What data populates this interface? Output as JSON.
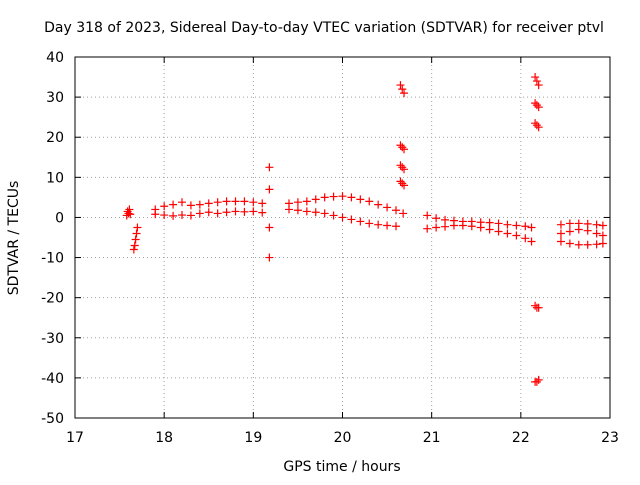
{
  "chart_data": {
    "type": "scatter",
    "title": "Day 318 of 2023, Sidereal Day-to-day VTEC variation (SDTVAR) for receiver ptvl",
    "xlabel": "GPS time / hours",
    "ylabel": "SDTVAR / TECUs",
    "xlim": [
      17,
      23
    ],
    "ylim": [
      -50,
      40
    ],
    "xticks": [
      "17",
      "18",
      "19",
      "20",
      "21",
      "22",
      "23"
    ],
    "yticks": [
      "-50",
      "-40",
      "-30",
      "-20",
      "-10",
      "0",
      "10",
      "20",
      "30",
      "40"
    ],
    "grid": true,
    "marker": "plus",
    "series_color": "#ff0000",
    "series": [
      {
        "name": "arc-17.6",
        "x": [
          17.58,
          17.59,
          17.6,
          17.61,
          17.62
        ],
        "y": [
          0.5,
          1.5,
          1.0,
          2.0,
          0.8
        ]
      },
      {
        "name": "arc-17.68",
        "x": [
          17.66,
          17.67,
          17.68,
          17.69,
          17.7
        ],
        "y": [
          -8.0,
          -7.0,
          -5.5,
          -4.0,
          -2.5
        ]
      },
      {
        "name": "arc-main-1-upper",
        "x": [
          17.9,
          18.0,
          18.1,
          18.2,
          18.3,
          18.4,
          18.5,
          18.6,
          18.7,
          18.8,
          18.9,
          19.0,
          19.1
        ],
        "y": [
          2.0,
          2.8,
          3.2,
          3.8,
          3.0,
          3.2,
          3.5,
          3.8,
          4.0,
          4.0,
          4.0,
          3.8,
          3.5
        ]
      },
      {
        "name": "arc-main-1-lower",
        "x": [
          17.9,
          18.0,
          18.1,
          18.2,
          18.3,
          18.4,
          18.5,
          18.6,
          18.7,
          18.8,
          18.9,
          19.0,
          19.1
        ],
        "y": [
          0.8,
          0.6,
          0.4,
          0.6,
          0.5,
          1.0,
          1.3,
          1.0,
          1.3,
          1.5,
          1.4,
          1.5,
          1.2
        ]
      },
      {
        "name": "arc-19.18",
        "x": [
          19.18,
          19.18,
          19.18,
          19.18
        ],
        "y": [
          12.5,
          7.0,
          -2.5,
          -10.0
        ]
      },
      {
        "name": "arc-main-2-upper",
        "x": [
          19.4,
          19.5,
          19.6,
          19.7,
          19.8,
          19.9,
          20.0,
          20.1,
          20.2,
          20.3,
          20.4,
          20.5,
          20.6,
          20.68
        ],
        "y": [
          3.5,
          3.8,
          4.0,
          4.5,
          5.0,
          5.2,
          5.3,
          5.0,
          4.5,
          4.0,
          3.2,
          2.5,
          1.8,
          1.0
        ]
      },
      {
        "name": "arc-main-2-lower",
        "x": [
          19.4,
          19.5,
          19.6,
          19.7,
          19.8,
          19.9,
          20.0,
          20.1,
          20.2,
          20.3,
          20.4,
          20.5,
          20.6
        ],
        "y": [
          2.0,
          1.8,
          1.5,
          1.3,
          1.0,
          0.5,
          0.0,
          -0.5,
          -1.0,
          -1.5,
          -1.8,
          -2.0,
          -2.2
        ]
      },
      {
        "name": "arc-20.67",
        "x": [
          20.65,
          20.67,
          20.69,
          20.65,
          20.67,
          20.69,
          20.65,
          20.67,
          20.69,
          20.65,
          20.67,
          20.69
        ],
        "y": [
          33.0,
          32.0,
          31.0,
          18.0,
          17.5,
          17.0,
          13.0,
          12.5,
          12.0,
          9.0,
          8.5,
          8.0
        ]
      },
      {
        "name": "arc-main-3-upper",
        "x": [
          20.95,
          21.05,
          21.15,
          21.25,
          21.35,
          21.45,
          21.55,
          21.65,
          21.75,
          21.85,
          21.95,
          22.05,
          22.12
        ],
        "y": [
          0.5,
          -0.2,
          -0.6,
          -0.8,
          -1.0,
          -1.0,
          -1.2,
          -1.3,
          -1.5,
          -1.8,
          -2.0,
          -2.2,
          -2.5
        ]
      },
      {
        "name": "arc-main-3-lower",
        "x": [
          20.95,
          21.05,
          21.15,
          21.25,
          21.35,
          21.45,
          21.55,
          21.65,
          21.75,
          21.85,
          21.95,
          22.05,
          22.12
        ],
        "y": [
          -2.8,
          -2.5,
          -2.3,
          -2.0,
          -2.0,
          -2.2,
          -2.5,
          -3.0,
          -3.5,
          -4.0,
          -4.5,
          -5.2,
          -6.0
        ]
      },
      {
        "name": "arc-22.18",
        "x": [
          22.16,
          22.18,
          22.2,
          22.16,
          22.18,
          22.2,
          22.16,
          22.18,
          22.2,
          22.16,
          22.18,
          22.2,
          22.16,
          22.18,
          22.2
        ],
        "y": [
          35.0,
          34.0,
          33.0,
          28.5,
          28.0,
          27.5,
          23.5,
          23.0,
          22.5,
          -22.0,
          -22.5,
          -22.5,
          -41.0,
          -41.0,
          -40.5
        ]
      },
      {
        "name": "arc-main-4-upper",
        "x": [
          22.45,
          22.55,
          22.65,
          22.75,
          22.85,
          22.92
        ],
        "y": [
          -1.8,
          -1.5,
          -1.5,
          -1.6,
          -1.8,
          -2.0
        ]
      },
      {
        "name": "arc-main-4-mid",
        "x": [
          22.45,
          22.55,
          22.65,
          22.75,
          22.85,
          22.92
        ],
        "y": [
          -4.0,
          -3.5,
          -3.0,
          -3.3,
          -4.0,
          -4.5
        ]
      },
      {
        "name": "arc-main-4-lower",
        "x": [
          22.45,
          22.55,
          22.65,
          22.75,
          22.85,
          22.92
        ],
        "y": [
          -6.0,
          -6.5,
          -6.8,
          -6.8,
          -6.7,
          -6.5
        ]
      }
    ]
  }
}
